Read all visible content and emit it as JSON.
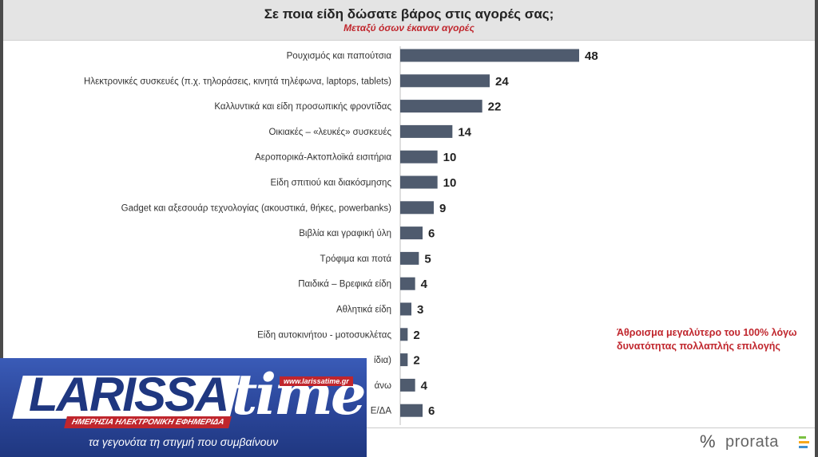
{
  "chart_data": {
    "type": "bar",
    "orientation": "horizontal",
    "title": "Σε ποια είδη δώσατε βάρος στις αγορές σας;",
    "subtitle": "Μεταξύ όσων έκαναν αγορές",
    "categories": [
      "Ρουχισμός και παπούτσια",
      "Ηλεκτρονικές συσκευές (π.χ. τηλοράσεις, κινητά τηλέφωνα, laptops, tablets)",
      "Καλλυντικά και είδη προσωπικής φροντίδας",
      "Οικιακές – «λευκές» συσκευές",
      "Αεροπορικά-Ακτοπλοϊκά εισιτήρια",
      "Είδη σπιτιού και διακόσμησης",
      "Gadget και αξεσουάρ τεχνολογίας (ακουστικά, θήκες, powerbanks)",
      "Βιβλία και γραφική ύλη",
      "Τρόφιμα και ποτά",
      "Παιδικά – Βρεφικά είδη",
      "Αθλητικά είδη",
      "Είδη αυτοκινήτου - μοτοσυκλέτας",
      "",
      "",
      ""
    ],
    "values": [
      48,
      24,
      22,
      14,
      10,
      10,
      9,
      6,
      5,
      4,
      3,
      2,
      2,
      4,
      6
    ],
    "visible_label_fragments": [
      "",
      "",
      "",
      "",
      "",
      "",
      "",
      "",
      "",
      "",
      "",
      "",
      "ίδια)",
      "άνω",
      "Ε/ΔΑ"
    ],
    "xlim": [
      0,
      50
    ],
    "bar_color": "#4f5b6e",
    "note": [
      "Άθροισμα μεγαλύτερο του 100% λόγω",
      "δυνατότητας πολλαπλής επιλογής"
    ]
  },
  "branding": {
    "source_name": "prorata",
    "source_symbol": "%",
    "mark_colors": [
      "#7ac142",
      "#f7a81b",
      "#3f8fcf"
    ]
  },
  "overlay": {
    "logo_main": "LARISSA",
    "logo_time": "time",
    "logo_url": "www.larissatime.gr",
    "logo_tagline": "ΗΜΕΡΗΣΙΑ ΗΛΕΚΤΡΟΝΙΚΗ ΕΦΗΜΕΡΙΔΑ",
    "slogan": "τα γεγονότα τη στιγμή που συμβαίνουν"
  },
  "colors": {
    "accent_red": "#c0262d",
    "overlay_blue": "#2a4598"
  }
}
